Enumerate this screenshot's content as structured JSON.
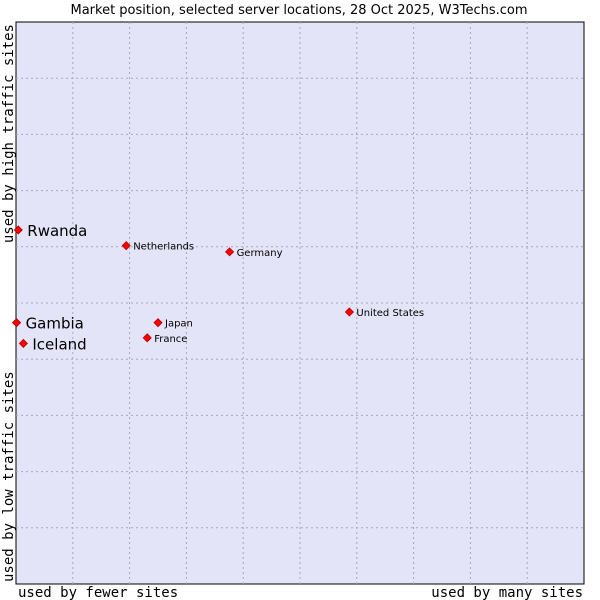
{
  "chart_data": {
    "type": "scatter",
    "title": "Market position, selected server locations, 28 Oct 2025, W3Techs.com",
    "xlabel_left": "used by fewer sites",
    "xlabel_right": "used by many sites",
    "ylabel_bottom": "used by low traffic sites",
    "ylabel_top": "used by high traffic sites",
    "xlim": [
      0,
      100
    ],
    "ylim": [
      0,
      100
    ],
    "grid": true,
    "colors": {
      "plot_bg": "#e4e4f8",
      "grid": "#a6a6c0",
      "point": "#ff0000",
      "point_stroke": "#b00000"
    },
    "points": [
      {
        "label": "Rwanda",
        "x": 0.4,
        "y": 63.0,
        "highlight": true
      },
      {
        "label": "Gambia",
        "x": 0.1,
        "y": 46.5,
        "highlight": true
      },
      {
        "label": "Iceland",
        "x": 1.3,
        "y": 42.8,
        "highlight": true
      },
      {
        "label": "Netherlands",
        "x": 19.4,
        "y": 60.2,
        "highlight": false
      },
      {
        "label": "Germany",
        "x": 37.6,
        "y": 59.1,
        "highlight": false
      },
      {
        "label": "United States",
        "x": 58.7,
        "y": 48.4,
        "highlight": false
      },
      {
        "label": "Japan",
        "x": 25.0,
        "y": 46.5,
        "highlight": false
      },
      {
        "label": "France",
        "x": 23.1,
        "y": 43.8,
        "highlight": false
      }
    ]
  }
}
